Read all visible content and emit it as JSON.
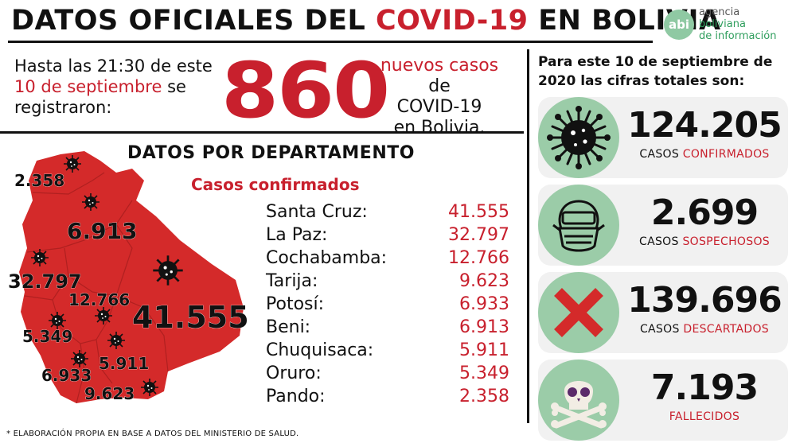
{
  "header": {
    "title_part1": "DATOS OFICIALES DEL ",
    "title_part2": "COVID-19",
    "title_part3": " EN BOLIVIA",
    "logo_abbr": "abi",
    "logo_line1": "agencia",
    "logo_line2": "boliviana",
    "logo_line3": "de información"
  },
  "intro": {
    "text1": "Hasta las 21:30 de este",
    "date": "10 de septiembre",
    "text2": " se registraron:",
    "big_number": "860",
    "new_cases_1": "nuevos casos",
    "new_cases_1b": " de",
    "new_cases_2": "COVID-19",
    "new_cases_3": "en Bolivia."
  },
  "departments": {
    "title": "DATOS POR DEPARTAMENTO",
    "subtitle": "Casos confirmados",
    "rows": [
      {
        "name": "Santa Cruz:",
        "value": "41.555"
      },
      {
        "name": "La Paz:",
        "value": "32.797"
      },
      {
        "name": "Cochabamba:",
        "value": "12.766"
      },
      {
        "name": "Tarija:",
        "value": "9.623"
      },
      {
        "name": "Potosí:",
        "value": "6.933"
      },
      {
        "name": "Beni:",
        "value": "6.913"
      },
      {
        "name": "Chuquisaca:",
        "value": "5.911"
      },
      {
        "name": "Oruro:",
        "value": "5.349"
      },
      {
        "name": "Pando:",
        "value": "2.358"
      }
    ],
    "map_labels": {
      "pando": "2.358",
      "beni": "6.913",
      "la_paz": "32.797",
      "cochabamba": "12.766",
      "santa_cruz": "41.555",
      "oruro": "5.349",
      "chuquisaca": "5.911",
      "potosi": "6.933",
      "tarija": "9.623"
    }
  },
  "totals": {
    "intro": "Para este 10 de septiembre de 2020 las cifras totales son:",
    "cards": [
      {
        "number": "124.205",
        "label_a": "CASOS ",
        "label_b": "CONFIRMADOS",
        "icon": "virus-icon"
      },
      {
        "number": "2.699",
        "label_a": "CASOS ",
        "label_b": "SOSPECHOSOS",
        "icon": "mask-face-icon"
      },
      {
        "number": "139.696",
        "label_a": "CASOS ",
        "label_b": "DESCARTADOS",
        "icon": "cross-icon"
      },
      {
        "number": "7.193",
        "label_a": "",
        "label_b": "FALLECIDOS",
        "icon": "skull-icon"
      }
    ]
  },
  "footnote": "* ELABORACIÓN PROPIA EN BASE A DATOS DEL MINISTERIO DE SALUD.",
  "colors": {
    "accent_red": "#c8202d",
    "map_red": "#d42a2a",
    "icon_green": "#9bcca8",
    "logo_green": "#2f9e5d"
  }
}
